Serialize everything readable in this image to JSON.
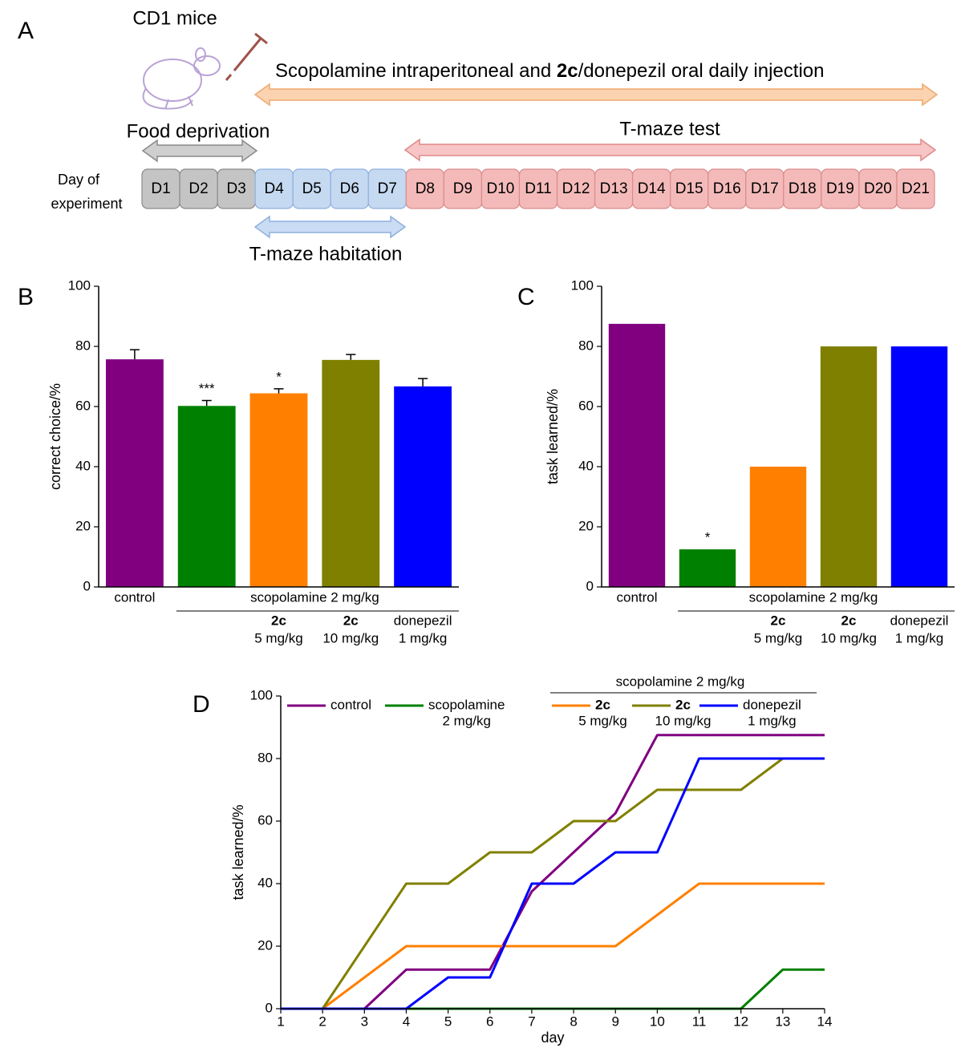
{
  "panel_a": {
    "panel_label": "A",
    "mouse_label": "CD1 mice",
    "injection_text": [
      "Scopolamine intraperitoneal and ",
      "2c",
      "/donepezil oral daily injection"
    ],
    "food_deprivation": "Food deprivation",
    "tmaze_test": "T-maze test",
    "day_label": [
      "Day of",
      "experiment"
    ],
    "days": [
      "D1",
      "D2",
      "D3",
      "D4",
      "D5",
      "D6",
      "D7",
      "D8",
      "D9",
      "D10",
      "D11",
      "D12",
      "D13",
      "D14",
      "D15",
      "D16",
      "D17",
      "D18",
      "D19",
      "D20",
      "D21"
    ],
    "tmaze_habituation": "T-maze habitation"
  },
  "chart_data": [
    {
      "type": "bar",
      "panel_label": "B",
      "ylabel": "correct choice/%",
      "categories": [
        "control",
        null,
        "2c",
        "2c",
        "donepezil"
      ],
      "category_bold": [
        false,
        false,
        true,
        true,
        false
      ],
      "category_sublabels": [
        null,
        null,
        "5 mg/kg",
        "10 mg/kg",
        "1 mg/kg"
      ],
      "group_label": "scopolamine 2 mg/kg",
      "values": [
        75.7,
        60.2,
        64.4,
        75.5,
        66.7
      ],
      "errors": [
        3.2,
        1.8,
        1.5,
        1.8,
        2.6
      ],
      "significance": [
        null,
        "***",
        "*",
        null,
        null
      ],
      "colors": [
        "#800080",
        "#008000",
        "#ff8000",
        "#808000",
        "#0000ff"
      ],
      "ylim": [
        0,
        100
      ],
      "yticks": [
        0,
        20,
        40,
        60,
        80,
        100
      ]
    },
    {
      "type": "bar",
      "panel_label": "C",
      "ylabel": "task learned/%",
      "categories": [
        "control",
        null,
        "2c",
        "2c",
        "donepezil"
      ],
      "category_bold": [
        false,
        false,
        true,
        true,
        false
      ],
      "category_sublabels": [
        null,
        null,
        "5 mg/kg",
        "10 mg/kg",
        "1 mg/kg"
      ],
      "group_label": "scopolamine 2 mg/kg",
      "values": [
        87.5,
        12.5,
        40,
        80,
        80
      ],
      "significance": [
        null,
        "*",
        null,
        null,
        null
      ],
      "colors": [
        "#800080",
        "#008000",
        "#ff8000",
        "#808000",
        "#0000ff"
      ],
      "ylim": [
        0,
        100
      ],
      "yticks": [
        0,
        20,
        40,
        60,
        80,
        100
      ]
    },
    {
      "type": "line",
      "panel_label": "D",
      "xlabel": "day",
      "ylabel": "task learned/%",
      "x": [
        1,
        2,
        3,
        4,
        5,
        6,
        7,
        8,
        9,
        10,
        11,
        12,
        13,
        14
      ],
      "xlim": [
        1,
        14
      ],
      "xticks": [
        1,
        2,
        3,
        4,
        5,
        6,
        7,
        8,
        9,
        10,
        11,
        12,
        13,
        14
      ],
      "ylim": [
        0,
        100
      ],
      "yticks": [
        0,
        20,
        40,
        60,
        80,
        100
      ],
      "legend_group_label": "scopolamine 2 mg/kg",
      "series": [
        {
          "name": "control",
          "bold": false,
          "color": "#800080",
          "values": [
            0,
            0,
            0,
            12.5,
            12.5,
            12.5,
            37.5,
            50,
            62.5,
            87.5,
            87.5,
            87.5,
            87.5,
            87.5
          ]
        },
        {
          "name": "scopolamine",
          "name_sub": "2 mg/kg",
          "bold": false,
          "color": "#008000",
          "values": [
            0,
            0,
            0,
            0,
            0,
            0,
            0,
            0,
            0,
            0,
            0,
            0,
            12.5,
            12.5
          ]
        },
        {
          "name": "2c",
          "name_sub": "5 mg/kg",
          "bold": true,
          "color": "#ff8000",
          "values": [
            0,
            0,
            10,
            20,
            20,
            20,
            20,
            20,
            20,
            30,
            40,
            40,
            40,
            40
          ]
        },
        {
          "name": "2c",
          "name_sub": "10 mg/kg",
          "bold": true,
          "color": "#808000",
          "values": [
            0,
            0,
            20,
            40,
            40,
            50,
            50,
            60,
            60,
            70,
            70,
            70,
            80,
            80
          ]
        },
        {
          "name": "donepezil",
          "name_sub": "1 mg/kg",
          "bold": false,
          "color": "#0000ff",
          "values": [
            0,
            0,
            0,
            0,
            10,
            10,
            40,
            40,
            50,
            50,
            80,
            80,
            80,
            80
          ]
        }
      ]
    }
  ]
}
